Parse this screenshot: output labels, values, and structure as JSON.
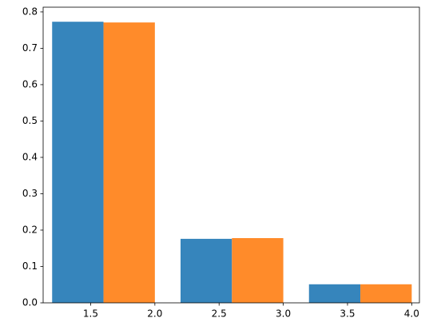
{
  "chart_data": {
    "type": "histogram",
    "bins": [
      1.1,
      2.1,
      3.1,
      4.1
    ],
    "series": [
      {
        "color": "#3685bc",
        "values": [
          0.773,
          0.176,
          0.051
        ]
      },
      {
        "color": "#ff8b2a",
        "values": [
          0.771,
          0.178,
          0.051
        ]
      }
    ],
    "xlim": [
      1.13,
      4.06
    ],
    "xticks": [
      1.5,
      {
        "value": 2.0,
        "label": "2.0"
      },
      2.5,
      {
        "value": 3.0,
        "label": "3.0"
      },
      3.5,
      {
        "value": 4.0,
        "label": "4.0"
      }
    ],
    "ylim": [
      0,
      0.813
    ],
    "yticks": [
      {
        "value": 0,
        "label": "0.0"
      },
      0.1,
      0.2,
      0.3,
      0.4,
      0.5,
      0.6,
      0.7,
      0.8
    ],
    "grid": false
  }
}
